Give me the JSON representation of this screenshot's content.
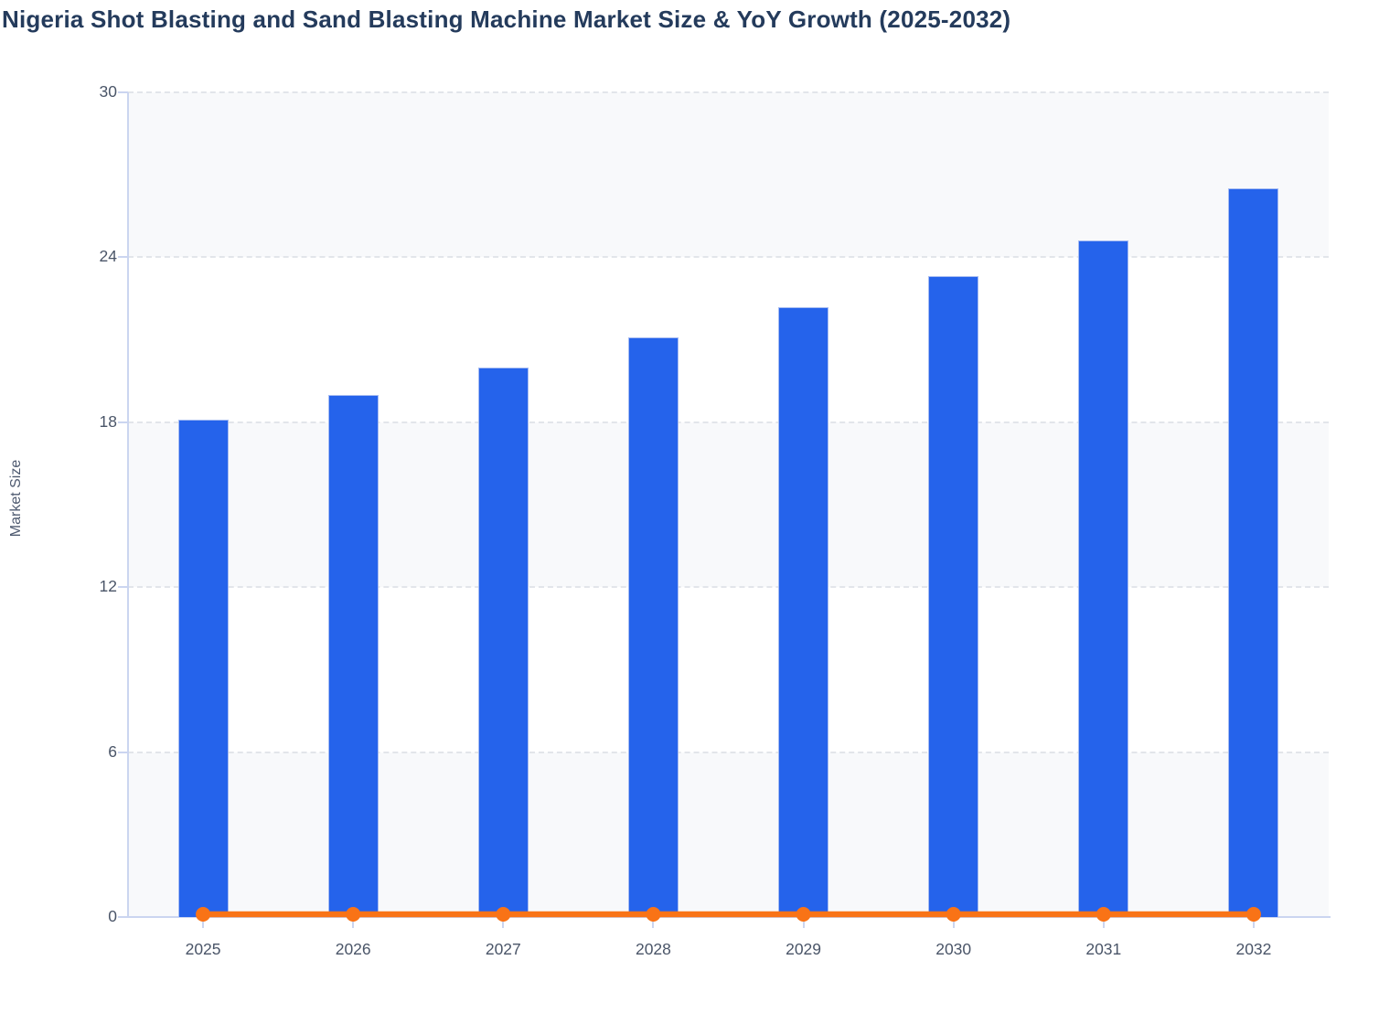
{
  "page": {
    "title": "Nigeria Shot Blasting and Sand Blasting Machine Market Size & YoY Growth (2025-2032)"
  },
  "chart_data": {
    "type": "bar",
    "title": "Nigeria Shot Blasting and Sand Blasting Machine Market Size & YoY Growth (2025-2032)",
    "xlabel": "",
    "ylabel": "Market Size",
    "categories": [
      "2025",
      "2026",
      "2027",
      "2028",
      "2029",
      "2030",
      "2031",
      "2032"
    ],
    "series": [
      {
        "name": "Market Size",
        "type": "bar",
        "color": "#2563EB",
        "values": [
          18.1,
          19.0,
          20.0,
          21.1,
          22.2,
          23.3,
          24.6,
          26.5
        ]
      },
      {
        "name": "YoY Growth",
        "type": "line",
        "color": "#F97316",
        "values": [
          0.05,
          0.05,
          0.05,
          0.05,
          0.05,
          0.05,
          0.05,
          0.05
        ]
      }
    ],
    "ylim": [
      0,
      30
    ],
    "yticks": [
      0,
      6,
      12,
      18,
      24,
      30
    ],
    "grid": "dashed horizontal gridlines",
    "legend": "none",
    "plot_bands_alternating": [
      "#FFFFFF",
      "#F8F9FB"
    ]
  },
  "colors": {
    "bar_fill": "#2563EB",
    "bar_border": "#A7BCF2",
    "line": "#F97316",
    "axis": "#CBD5F0",
    "gridline": "#E2E5EA",
    "band_gray": "#F8F9FB",
    "title_text": "#243B5C",
    "tick_text": "#4A5568"
  }
}
